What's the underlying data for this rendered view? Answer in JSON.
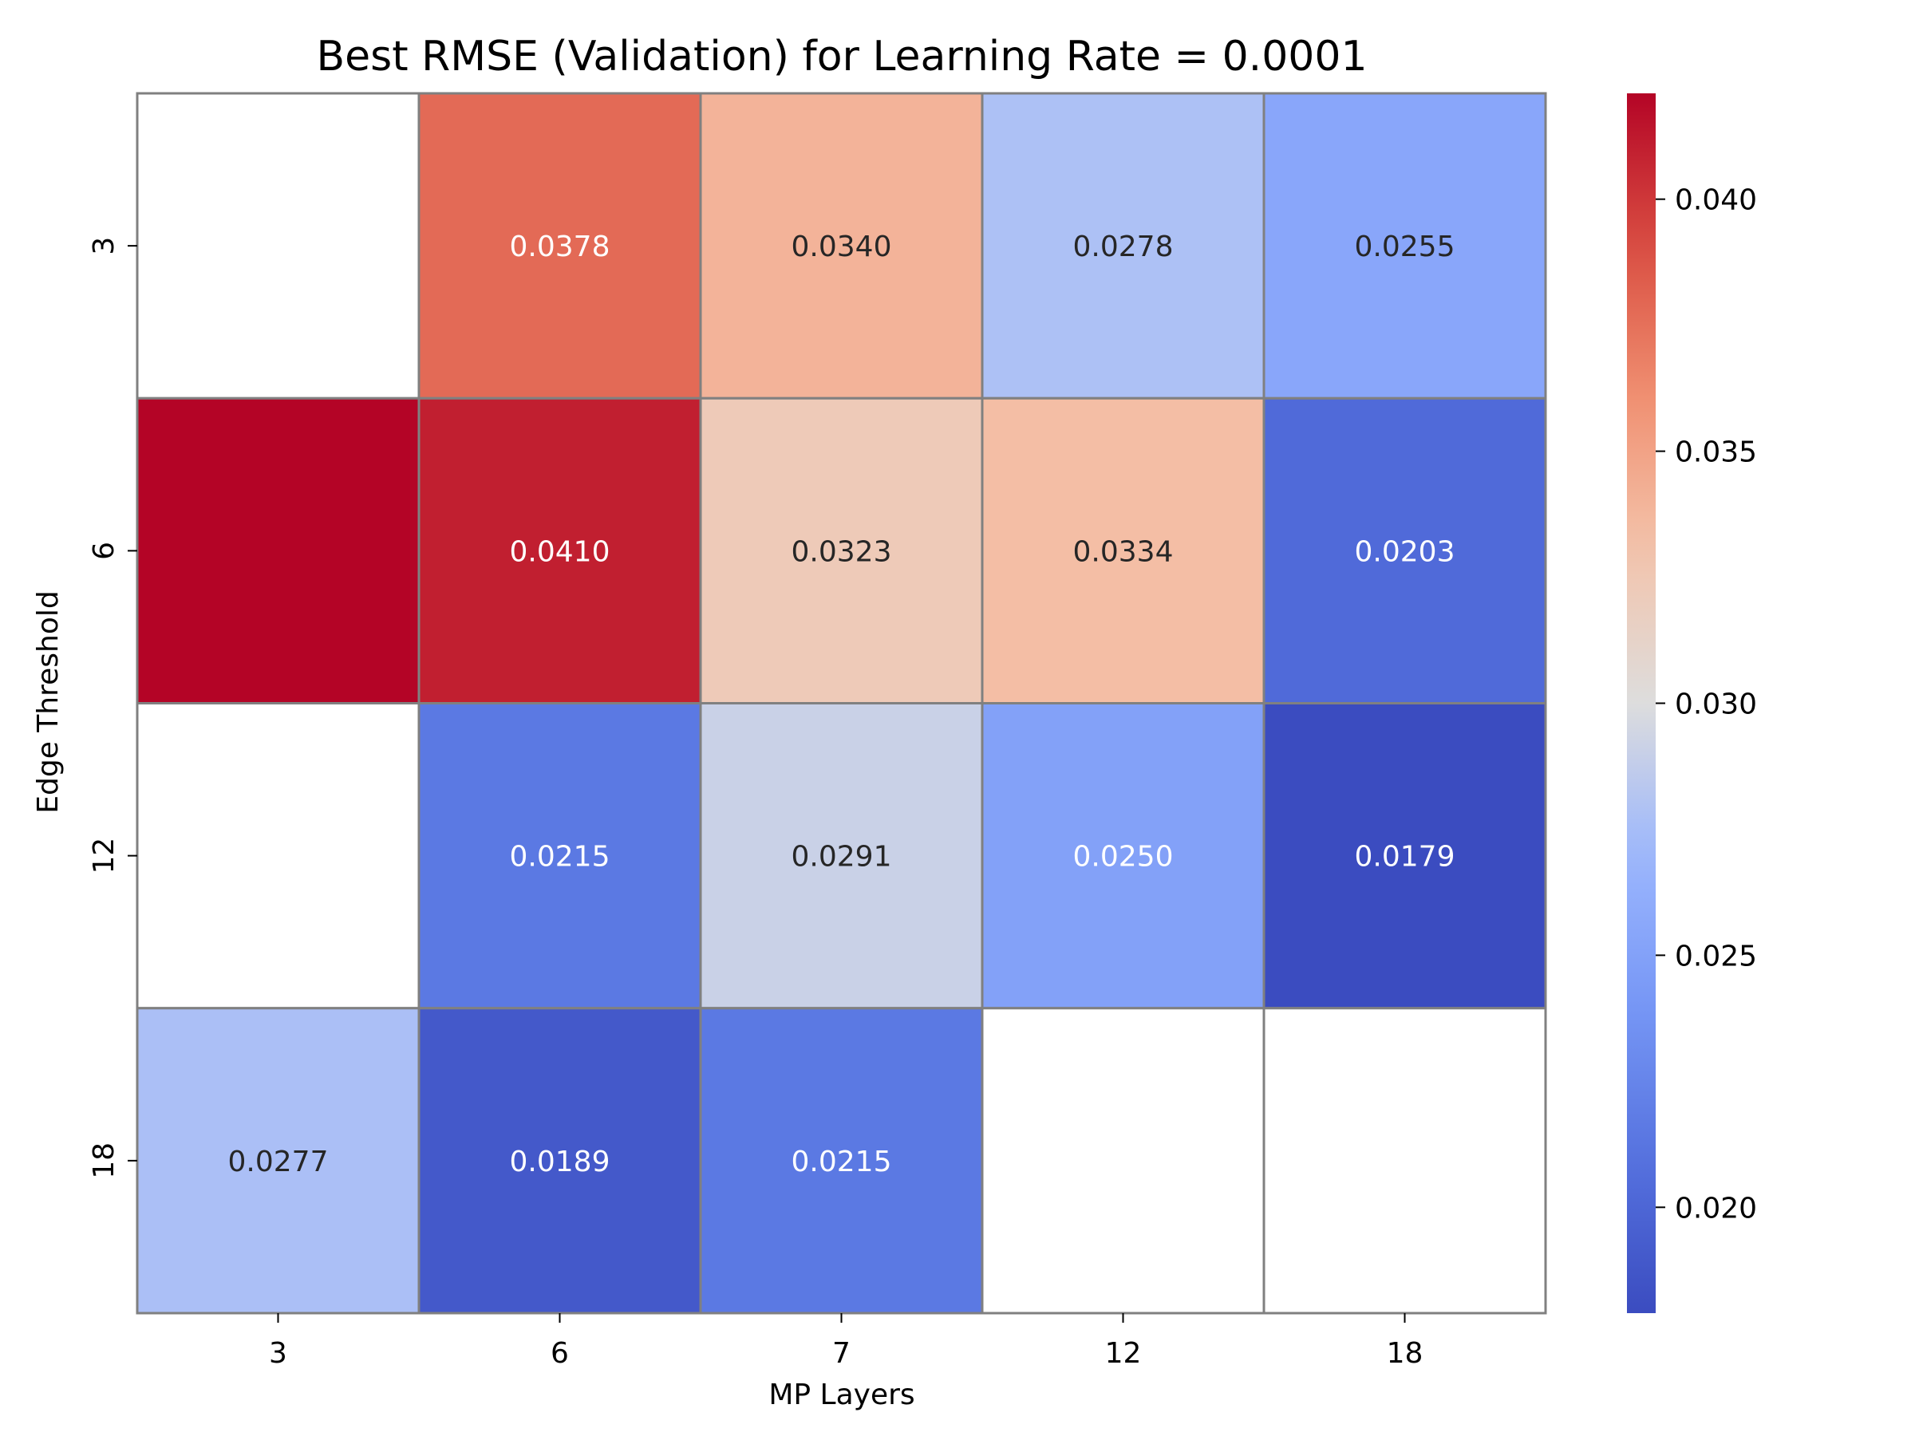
{
  "chart_data": {
    "type": "heatmap",
    "title": "Best RMSE (Validation) for Learning Rate = 0.0001",
    "xlabel": "MP Layers",
    "ylabel": "Edge Threshold",
    "x_categories": [
      "3",
      "6",
      "7",
      "12",
      "18"
    ],
    "y_categories": [
      "3",
      "6",
      "12",
      "18"
    ],
    "values": [
      [
        null,
        0.0378,
        0.034,
        0.0278,
        0.0255
      ],
      [
        0.0421,
        0.041,
        0.0323,
        0.0334,
        0.0203
      ],
      [
        null,
        0.0215,
        0.0291,
        0.025,
        0.0179
      ],
      [
        0.0277,
        0.0189,
        0.0215,
        null,
        null
      ]
    ],
    "value_labels": [
      [
        null,
        "0.0378",
        "0.0340",
        "0.0278",
        "0.0255"
      ],
      [
        null,
        "0.0410",
        "0.0323",
        "0.0334",
        "0.0203"
      ],
      [
        null,
        "0.0215",
        "0.0291",
        "0.0250",
        "0.0179"
      ],
      [
        "0.0277",
        "0.0189",
        "0.0215",
        null,
        null
      ]
    ],
    "colormap": "coolwarm",
    "vmin": 0.0179,
    "vmax": 0.0421,
    "colorbar_ticks": [
      "0.020",
      "0.025",
      "0.030",
      "0.035",
      "0.040"
    ],
    "colorbar_tick_values": [
      0.02,
      0.025,
      0.03,
      0.035,
      0.04
    ],
    "grid_line_color": "#808080",
    "missing_color": "#ffffff"
  }
}
